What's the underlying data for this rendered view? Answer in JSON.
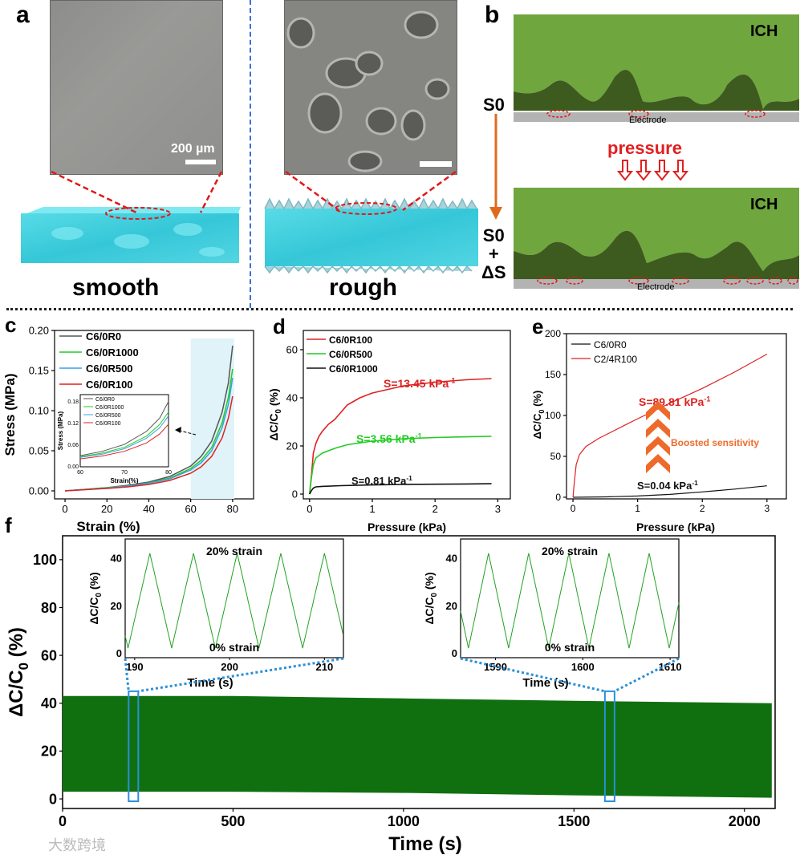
{
  "panel_a": {
    "label": "a",
    "scale_bar": "200 µm",
    "left_caption": "smooth",
    "right_caption": "rough"
  },
  "panel_b": {
    "label": "b",
    "top_material": "ICH",
    "bottom_material": "ICH",
    "electrode_top": "Electrode",
    "electrode_bottom": "Electrode",
    "state_initial": "S0",
    "state_final_1": "S0",
    "state_final_2": "+",
    "state_final_3": "ΔS",
    "pressure_label": "pressure",
    "colors": {
      "hydrogel": "#6fa63d",
      "hydrogel_dark": "#3d5b1e",
      "electrode": "#b3b3b3",
      "arrow": "#e06a1c",
      "pressure": "#e02020"
    }
  },
  "panel_c": {
    "label": "c"
  },
  "panel_d": {
    "label": "d"
  },
  "panel_e": {
    "label": "e"
  },
  "panel_f": {
    "label": "f"
  },
  "watermark": "大数跨境",
  "chart_data": [
    {
      "id": "c",
      "type": "line",
      "xlabel": "Strain (%)",
      "ylabel": "Stress (MPa)",
      "xlim": [
        -5,
        90
      ],
      "ylim": [
        -0.01,
        0.2
      ],
      "xticks": [
        "0",
        "20",
        "40",
        "60",
        "80"
      ],
      "yticks": [
        "0.00",
        "0.05",
        "0.10",
        "0.15",
        "0.20"
      ],
      "legend": "top-left",
      "series": [
        {
          "name": "C6/0R0",
          "color": "#555555",
          "x": [
            0,
            10,
            20,
            30,
            40,
            50,
            60,
            65,
            70,
            75,
            78,
            80
          ],
          "y": [
            0,
            0.002,
            0.004,
            0.007,
            0.011,
            0.018,
            0.031,
            0.043,
            0.062,
            0.098,
            0.135,
            0.181
          ]
        },
        {
          "name": "C6/0R1000",
          "color": "#22cc22",
          "x": [
            0,
            10,
            20,
            30,
            40,
            50,
            60,
            65,
            70,
            75,
            78,
            80
          ],
          "y": [
            0,
            0.002,
            0.004,
            0.006,
            0.01,
            0.016,
            0.028,
            0.038,
            0.054,
            0.085,
            0.117,
            0.152
          ]
        },
        {
          "name": "C6/0R500",
          "color": "#3aa0e6",
          "x": [
            0,
            10,
            20,
            30,
            40,
            50,
            60,
            65,
            70,
            75,
            78,
            80
          ],
          "y": [
            0,
            0.0018,
            0.0035,
            0.006,
            0.0095,
            0.015,
            0.026,
            0.035,
            0.05,
            0.079,
            0.108,
            0.141
          ]
        },
        {
          "name": "C6/0R100",
          "color": "#dd2222",
          "x": [
            0,
            10,
            20,
            30,
            40,
            50,
            60,
            65,
            70,
            75,
            78,
            80
          ],
          "y": [
            0,
            0.0015,
            0.003,
            0.005,
            0.008,
            0.013,
            0.022,
            0.03,
            0.043,
            0.066,
            0.091,
            0.118
          ]
        }
      ],
      "inset": {
        "xlabel": "Strain(%)",
        "ylabel": "Stress (MPa)",
        "xlim": [
          60,
          80
        ],
        "ylim": [
          0,
          0.2
        ],
        "xticks": [
          "60",
          "70",
          "80"
        ],
        "yticks": [
          "0.00",
          "0.06",
          "0.12",
          "0.18"
        ],
        "legend": [
          "C6/0R0",
          "C6/0R1000",
          "C6/0R500",
          "C6/0R100"
        ]
      }
    },
    {
      "id": "d",
      "type": "line",
      "xlabel": "Pressure (kPa)",
      "ylabel": "ΔC/C0 (%)",
      "xlim": [
        -0.1,
        3.2
      ],
      "ylim": [
        -2,
        68
      ],
      "xticks": [
        "0",
        "1",
        "2",
        "3"
      ],
      "yticks": [
        "0",
        "20",
        "40",
        "60"
      ],
      "legend": "top-left",
      "annotations": [
        "S=13.45 kPa-1",
        "S=3.56 kPa-1",
        "S=0.81 kPa-1"
      ],
      "series": [
        {
          "name": "C6/0R100",
          "color": "#dd2222",
          "x": [
            0,
            0.03,
            0.06,
            0.1,
            0.15,
            0.2,
            0.3,
            0.4,
            0.5,
            0.6,
            0.8,
            1.0,
            1.5,
            2.0,
            2.5,
            2.9
          ],
          "y": [
            0,
            8,
            17,
            21,
            24,
            26,
            29,
            31,
            34,
            37,
            40,
            42,
            45,
            46.5,
            47.5,
            48
          ]
        },
        {
          "name": "C6/0R500",
          "color": "#22cc22",
          "x": [
            0,
            0.03,
            0.06,
            0.1,
            0.2,
            0.4,
            0.6,
            1.0,
            1.5,
            2.0,
            2.5,
            2.9
          ],
          "y": [
            0,
            7,
            12,
            15,
            17,
            19,
            20.5,
            22,
            23,
            23.5,
            23.8,
            24
          ]
        },
        {
          "name": "C6/0R1000",
          "color": "#111111",
          "x": [
            0,
            0.03,
            0.06,
            0.1,
            0.2,
            0.5,
            1.0,
            1.5,
            2.0,
            2.5,
            2.9
          ],
          "y": [
            0,
            1.5,
            2.5,
            3,
            3.2,
            3.5,
            3.8,
            4,
            4.1,
            4.2,
            4.3
          ]
        }
      ]
    },
    {
      "id": "e",
      "type": "line",
      "xlabel": "Pressure (kPa)",
      "ylabel": "ΔC/C0 (%)",
      "xlim": [
        -0.1,
        3.3
      ],
      "ylim": [
        -2,
        200
      ],
      "xticks": [
        "0",
        "1",
        "2",
        "3"
      ],
      "yticks": [
        "0",
        "50",
        "100",
        "150",
        "200"
      ],
      "legend": "top-left",
      "annotations": [
        "S=89.81 kPa-1",
        "Boosted sensitivity",
        "S=0.04 kPa-1"
      ],
      "series": [
        {
          "name": "C6/0R0",
          "color": "#111111",
          "x": [
            0,
            0.5,
            1.0,
            1.5,
            2.0,
            2.5,
            3.0
          ],
          "y": [
            0,
            0.5,
            1.5,
            3.5,
            6.5,
            10,
            14
          ]
        },
        {
          "name": "C2/4R100",
          "color": "#dd2222",
          "x": [
            0,
            0.02,
            0.05,
            0.1,
            0.2,
            0.4,
            0.6,
            0.8,
            1.0,
            1.5,
            2.0,
            2.5,
            3.0
          ],
          "y": [
            0,
            18,
            40,
            52,
            62,
            72,
            80,
            88,
            96,
            115,
            133,
            153,
            175
          ]
        }
      ]
    },
    {
      "id": "f",
      "type": "area",
      "xlabel": "Time (s)",
      "ylabel": "ΔC/C0 (%)",
      "xlim": [
        0,
        2090
      ],
      "ylim": [
        -4,
        110
      ],
      "xticks": [
        "0",
        "500",
        "1000",
        "1500",
        "2000"
      ],
      "yticks": [
        "0",
        "20",
        "40",
        "60",
        "80",
        "100"
      ],
      "series": [
        {
          "name": "",
          "color": "#107010",
          "x": [
            0,
            500,
            1000,
            1500,
            2080
          ],
          "upper": [
            43,
            43,
            42,
            41,
            40
          ],
          "lower": [
            3,
            3,
            2.5,
            1.5,
            0.5
          ]
        }
      ],
      "insets": [
        {
          "title_top": "20% strain",
          "title_bottom": "0% strain",
          "xlabel": "Time (s)",
          "ylabel": "ΔC/C0 (%)",
          "xlim": [
            189,
            212
          ],
          "ylim": [
            -2,
            48
          ],
          "xticks": [
            "190",
            "200",
            "210"
          ],
          "yticks": [
            "0",
            "20",
            "40"
          ],
          "period": 4.6,
          "peak_time": 191.6,
          "amplitude_max": 42,
          "amplitude_min": 2
        },
        {
          "title_top": "20% strain",
          "title_bottom": "0% strain",
          "xlabel": "Time (s)",
          "ylabel": "ΔC/C0 (%)",
          "xlim": [
            1586,
            1611
          ],
          "ylim": [
            -2,
            48
          ],
          "xticks": [
            "1590",
            "1600",
            "1610"
          ],
          "yticks": [
            "0",
            "20",
            "40"
          ],
          "period": 4.6,
          "peak_time": 1589.2,
          "amplitude_max": 42,
          "amplitude_min": 2
        }
      ]
    }
  ]
}
